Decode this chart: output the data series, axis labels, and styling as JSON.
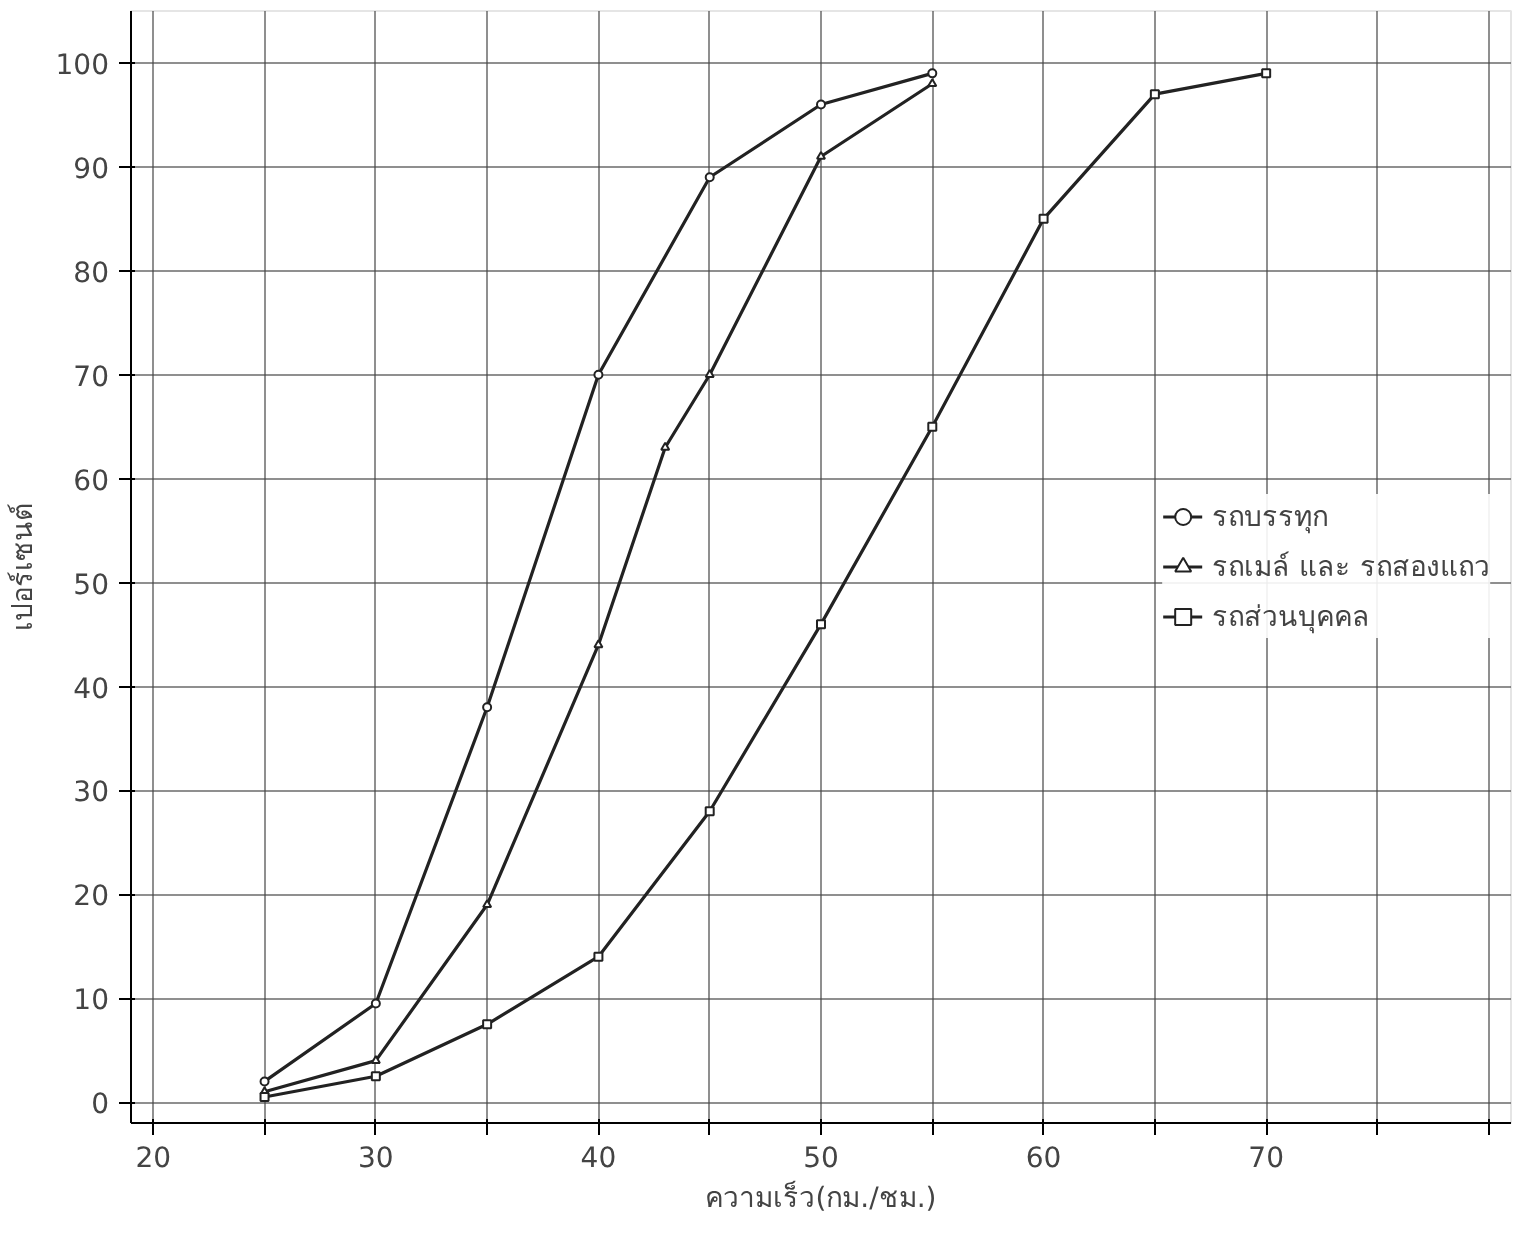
{
  "chart_data": {
    "type": "line",
    "xlabel": "ความเร็ว(กม./ชม.)",
    "ylabel": "เปอร์เซนต์",
    "xlim": [
      19,
      81
    ],
    "ylim": [
      -2,
      105
    ],
    "xticks": [
      20,
      {
        "value": 25,
        "label": null
      },
      30,
      {
        "value": 35,
        "label": null
      },
      40,
      {
        "value": 45,
        "label": null
      },
      50,
      {
        "value": 55,
        "label": null
      },
      60,
      {
        "value": 65,
        "label": null
      },
      70,
      {
        "value": 75,
        "label": null
      },
      {
        "value": 80,
        "label": null
      }
    ],
    "yticks": [
      0,
      10,
      20,
      30,
      40,
      50,
      60,
      70,
      80,
      90,
      100
    ],
    "grid": true,
    "legend": "right",
    "line_style": "solid",
    "series": [
      {
        "name": "รถบรรทุก",
        "color": "#222222",
        "marker": "circle",
        "x": [
          25,
          30,
          35,
          40,
          45,
          50,
          55
        ],
        "values": [
          2,
          9.5,
          38,
          70,
          89,
          96,
          99
        ]
      },
      {
        "name": "รถเมล์ และ รถสองแถว",
        "color": "#222222",
        "marker": "triangle",
        "x": [
          25,
          30,
          35,
          40,
          43,
          45,
          50,
          55
        ],
        "values": [
          1,
          4,
          19,
          44,
          63,
          70,
          91,
          98
        ]
      },
      {
        "name": "รถส่วนบุคคล",
        "color": "#222222",
        "marker": "square",
        "x": [
          25,
          30,
          35,
          40,
          45,
          50,
          55,
          60,
          65,
          70
        ],
        "values": [
          0.5,
          2.5,
          7.5,
          14,
          28,
          46,
          65,
          85,
          97,
          99
        ]
      }
    ]
  }
}
